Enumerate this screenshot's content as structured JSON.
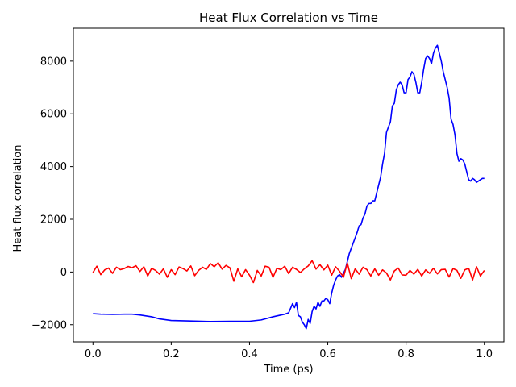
{
  "chart_data": {
    "type": "line",
    "title": "Heat Flux Correlation vs Time",
    "xlabel": "Time (ps)",
    "ylabel": "Heat flux correlation",
    "xlim": [
      -0.05,
      1.05
    ],
    "ylim": [
      -2650,
      9250
    ],
    "xticks": [
      0.0,
      0.2,
      0.4,
      0.6,
      0.8,
      1.0
    ],
    "xtick_labels": [
      "0.0",
      "0.2",
      "0.4",
      "0.6",
      "0.8",
      "1.0"
    ],
    "yticks": [
      -2000,
      0,
      2000,
      4000,
      6000,
      8000
    ],
    "ytick_labels": [
      "−2000",
      "0",
      "2000",
      "4000",
      "6000",
      "8000"
    ],
    "grid": false,
    "legend": "none",
    "series": [
      {
        "color": "#0000ff",
        "x": [
          0.0,
          0.02,
          0.05,
          0.08,
          0.1,
          0.12,
          0.15,
          0.17,
          0.2,
          0.25,
          0.3,
          0.35,
          0.4,
          0.43,
          0.46,
          0.49,
          0.5,
          0.51,
          0.515,
          0.52,
          0.525,
          0.53,
          0.535,
          0.54,
          0.545,
          0.55,
          0.555,
          0.56,
          0.565,
          0.57,
          0.575,
          0.58,
          0.585,
          0.59,
          0.595,
          0.6,
          0.605,
          0.61,
          0.615,
          0.62,
          0.625,
          0.63,
          0.635,
          0.64,
          0.645,
          0.65,
          0.655,
          0.66,
          0.665,
          0.67,
          0.675,
          0.68,
          0.685,
          0.69,
          0.695,
          0.7,
          0.705,
          0.71,
          0.715,
          0.72,
          0.725,
          0.73,
          0.735,
          0.74,
          0.745,
          0.75,
          0.755,
          0.76,
          0.765,
          0.77,
          0.775,
          0.78,
          0.785,
          0.79,
          0.795,
          0.8,
          0.805,
          0.81,
          0.815,
          0.82,
          0.825,
          0.83,
          0.835,
          0.84,
          0.845,
          0.85,
          0.855,
          0.86,
          0.865,
          0.87,
          0.875,
          0.88,
          0.885,
          0.89,
          0.895,
          0.9,
          0.905,
          0.91,
          0.915,
          0.92,
          0.925,
          0.93,
          0.935,
          0.94,
          0.945,
          0.95,
          0.955,
          0.96,
          0.965,
          0.97,
          0.975,
          0.98,
          0.985,
          0.99,
          0.995,
          1.0
        ],
        "y": [
          -1580,
          -1600,
          -1610,
          -1600,
          -1600,
          -1630,
          -1700,
          -1780,
          -1840,
          -1860,
          -1880,
          -1870,
          -1870,
          -1820,
          -1700,
          -1600,
          -1550,
          -1200,
          -1350,
          -1150,
          -1650,
          -1700,
          -1900,
          -2000,
          -2150,
          -1800,
          -1950,
          -1500,
          -1300,
          -1400,
          -1150,
          -1300,
          -1100,
          -1100,
          -1000,
          -1050,
          -1200,
          -800,
          -500,
          -300,
          -150,
          -100,
          -200,
          -50,
          100,
          400,
          700,
          900,
          1100,
          1300,
          1500,
          1750,
          1800,
          2050,
          2200,
          2500,
          2600,
          2600,
          2700,
          2700,
          3000,
          3300,
          3600,
          4100,
          4500,
          5300,
          5500,
          5700,
          6300,
          6400,
          6900,
          7100,
          7200,
          7100,
          6800,
          6800,
          7300,
          7400,
          7600,
          7500,
          7200,
          6800,
          6800,
          7200,
          7700,
          8100,
          8200,
          8100,
          7900,
          8300,
          8500,
          8600,
          8300,
          8000,
          7600,
          7300,
          7000,
          6600,
          5800,
          5600,
          5200,
          4500,
          4200,
          4300,
          4250,
          4100,
          3800,
          3500,
          3450,
          3550,
          3500,
          3400,
          3450,
          3500,
          3550,
          3550
        ]
      },
      {
        "color": "#ff0000",
        "x": [
          0.0,
          0.01,
          0.02,
          0.03,
          0.04,
          0.05,
          0.06,
          0.07,
          0.08,
          0.09,
          0.1,
          0.11,
          0.12,
          0.13,
          0.14,
          0.15,
          0.16,
          0.17,
          0.18,
          0.19,
          0.2,
          0.21,
          0.22,
          0.23,
          0.24,
          0.25,
          0.26,
          0.27,
          0.28,
          0.29,
          0.3,
          0.31,
          0.32,
          0.33,
          0.34,
          0.35,
          0.36,
          0.37,
          0.38,
          0.39,
          0.4,
          0.41,
          0.42,
          0.43,
          0.44,
          0.45,
          0.46,
          0.47,
          0.48,
          0.49,
          0.5,
          0.51,
          0.52,
          0.53,
          0.54,
          0.55,
          0.56,
          0.57,
          0.58,
          0.59,
          0.6,
          0.61,
          0.62,
          0.63,
          0.64,
          0.65,
          0.66,
          0.67,
          0.68,
          0.69,
          0.7,
          0.71,
          0.72,
          0.73,
          0.74,
          0.75,
          0.76,
          0.77,
          0.78,
          0.79,
          0.8,
          0.81,
          0.82,
          0.83,
          0.84,
          0.85,
          0.86,
          0.87,
          0.88,
          0.89,
          0.9,
          0.91,
          0.92,
          0.93,
          0.94,
          0.95,
          0.96,
          0.97,
          0.98,
          0.99,
          1.0
        ],
        "y": [
          -20,
          220,
          -100,
          80,
          150,
          -50,
          180,
          90,
          130,
          210,
          160,
          240,
          20,
          200,
          -150,
          140,
          60,
          -80,
          120,
          -200,
          90,
          -100,
          190,
          130,
          40,
          230,
          -140,
          60,
          180,
          100,
          320,
          200,
          350,
          110,
          250,
          160,
          -350,
          120,
          -180,
          90,
          -120,
          -400,
          60,
          -150,
          220,
          180,
          -200,
          140,
          90,
          220,
          -60,
          180,
          100,
          -20,
          120,
          230,
          430,
          110,
          280,
          80,
          260,
          -120,
          200,
          30,
          -200,
          340,
          -250,
          120,
          -80,
          180,
          90,
          -150,
          120,
          -120,
          80,
          -40,
          -300,
          40,
          150,
          -110,
          -120,
          60,
          -80,
          100,
          -150,
          80,
          -50,
          140,
          -70,
          90,
          100,
          -190,
          130,
          60,
          -240,
          80,
          140,
          -300,
          200,
          -150,
          60
        ]
      }
    ]
  }
}
